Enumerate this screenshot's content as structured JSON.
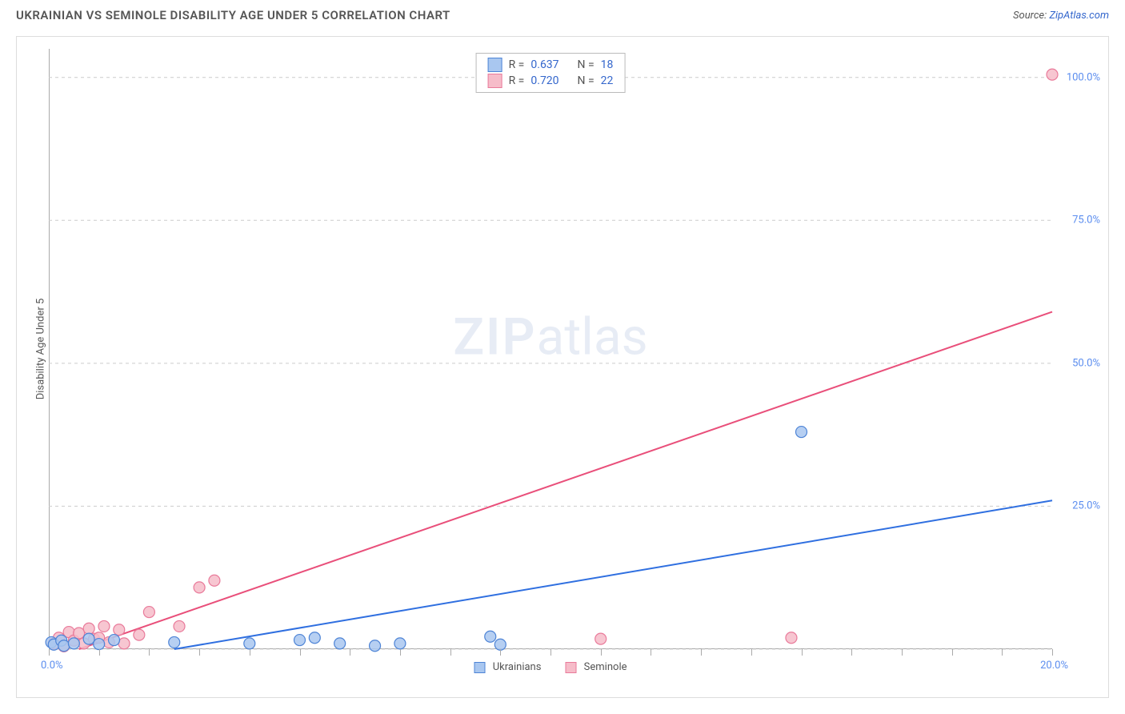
{
  "title": "UKRAINIAN VS SEMINOLE DISABILITY AGE UNDER 5 CORRELATION CHART",
  "source_label": "Source:",
  "source_link_text": "ZipAtlas.com",
  "y_axis_label": "Disability Age Under 5",
  "watermark_zip": "ZIP",
  "watermark_atlas": "atlas",
  "chart": {
    "type": "scatter",
    "background_color": "#ffffff",
    "grid_color": "#cccccc",
    "grid_dash": "4 4",
    "axis_color": "#aaaaaa",
    "xlim": [
      0,
      20
    ],
    "ylim": [
      0,
      105
    ],
    "x_ticks": [
      0,
      1,
      2,
      3,
      4,
      5,
      6,
      7,
      8,
      9,
      10,
      11,
      12,
      13,
      14,
      15,
      16,
      17,
      18,
      19,
      20
    ],
    "x_tick_labels_shown": {
      "0": "0.0%",
      "20": "20.0%"
    },
    "y_gridlines": [
      0,
      25,
      50,
      75,
      100
    ],
    "y_tick_labels": {
      "25": "25.0%",
      "50": "50.0%",
      "75": "75.0%",
      "100": "100.0%"
    },
    "marker_radius": 7,
    "marker_stroke_width": 1.2,
    "line_width": 2,
    "label_fontsize": 13,
    "tick_color": "#5b8def"
  },
  "series": {
    "ukrainians": {
      "label": "Ukrainians",
      "fill": "#a9c7f0",
      "stroke": "#4e84d6",
      "R": "0.637",
      "N": "18",
      "trend": {
        "x1": 2.5,
        "y1": 0,
        "x2": 20,
        "y2": 26,
        "color": "#2f6fe0"
      },
      "points": [
        {
          "x": 0.05,
          "y": 1.2
        },
        {
          "x": 0.1,
          "y": 0.8
        },
        {
          "x": 0.25,
          "y": 1.5
        },
        {
          "x": 0.3,
          "y": 0.6
        },
        {
          "x": 0.5,
          "y": 1.0
        },
        {
          "x": 0.8,
          "y": 1.8
        },
        {
          "x": 1.0,
          "y": 0.9
        },
        {
          "x": 1.3,
          "y": 1.6
        },
        {
          "x": 2.5,
          "y": 1.2
        },
        {
          "x": 4.0,
          "y": 1.0
        },
        {
          "x": 5.0,
          "y": 1.6
        },
        {
          "x": 5.3,
          "y": 2.0
        },
        {
          "x": 5.8,
          "y": 1.0
        },
        {
          "x": 6.5,
          "y": 0.6
        },
        {
          "x": 7.0,
          "y": 1.0
        },
        {
          "x": 8.8,
          "y": 2.2
        },
        {
          "x": 9.0,
          "y": 0.8
        },
        {
          "x": 15.0,
          "y": 38.0
        }
      ]
    },
    "seminole": {
      "label": "Seminole",
      "fill": "#f6bcc9",
      "stroke": "#e97a9a",
      "R": "0.720",
      "N": "22",
      "trend": {
        "x1": 0.6,
        "y1": 0,
        "x2": 20,
        "y2": 59,
        "color": "#e94f7a"
      },
      "points": [
        {
          "x": 0.1,
          "y": 1.0
        },
        {
          "x": 0.2,
          "y": 2.0
        },
        {
          "x": 0.3,
          "y": 0.5
        },
        {
          "x": 0.4,
          "y": 3.0
        },
        {
          "x": 0.5,
          "y": 1.5
        },
        {
          "x": 0.6,
          "y": 2.8
        },
        {
          "x": 0.7,
          "y": 1.0
        },
        {
          "x": 0.8,
          "y": 3.6
        },
        {
          "x": 0.9,
          "y": 1.8
        },
        {
          "x": 1.0,
          "y": 2.0
        },
        {
          "x": 1.1,
          "y": 4.0
        },
        {
          "x": 1.2,
          "y": 1.2
        },
        {
          "x": 1.4,
          "y": 3.4
        },
        {
          "x": 1.5,
          "y": 1.0
        },
        {
          "x": 1.8,
          "y": 2.5
        },
        {
          "x": 2.0,
          "y": 6.5
        },
        {
          "x": 2.6,
          "y": 4.0
        },
        {
          "x": 3.0,
          "y": 10.8
        },
        {
          "x": 3.3,
          "y": 12.0
        },
        {
          "x": 11.0,
          "y": 1.8
        },
        {
          "x": 14.8,
          "y": 2.0
        },
        {
          "x": 20.0,
          "y": 100.5
        }
      ]
    }
  },
  "stats_labels": {
    "R": "R =",
    "N": "N ="
  },
  "bottom_legend_order": [
    "ukrainians",
    "seminole"
  ]
}
